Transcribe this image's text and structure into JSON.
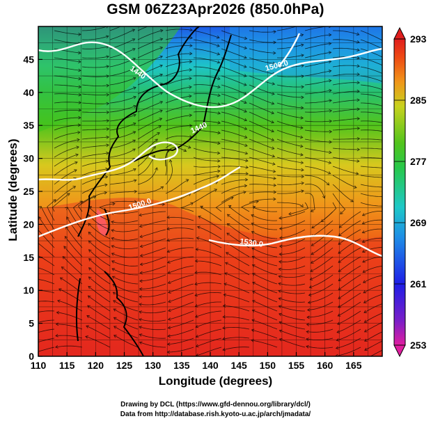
{
  "title": "GSM 06Z23Apr2026 (850.0hPa)",
  "map": {
    "x_axis": {
      "label": "Longitude (degrees)",
      "min": 110,
      "max": 170,
      "ticks": [
        110,
        115,
        120,
        125,
        130,
        135,
        140,
        145,
        150,
        155,
        160,
        165
      ]
    },
    "y_axis": {
      "label": "Latitude  (degrees)",
      "min": 0,
      "max": 50,
      "ticks": [
        0,
        5,
        10,
        15,
        20,
        25,
        30,
        35,
        40,
        45
      ]
    },
    "colorbar": {
      "min": 253,
      "max": 293,
      "labels": [
        293,
        285,
        277,
        269,
        261,
        253
      ]
    },
    "contour_labels": [
      "1440",
      "1500.0",
      "1440",
      "1500.0",
      "1530.0"
    ],
    "colors": {
      "warm": "#e8321e",
      "orange": "#f08a1c",
      "green": "#3cc21e",
      "cyan": "#1ec8c8",
      "blue": "#1e64e6"
    }
  },
  "credits": {
    "line1": "Drawing by DCL (https://www.gfd-dennou.org/library/dcl/)",
    "line2": "Data from http://database.rish.kyoto-u.ac.jp/arch/jmadata/"
  }
}
